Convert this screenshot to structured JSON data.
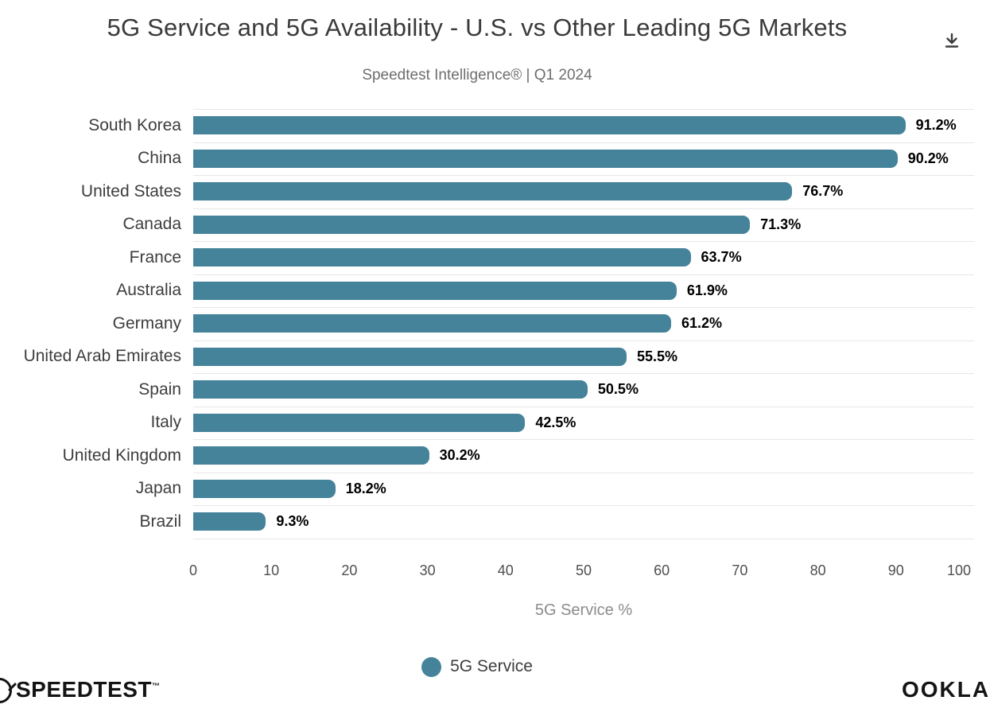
{
  "title": "5G Service and 5G Availability - U.S. vs Other Leading 5G Markets",
  "subtitle": "Speedtest Intelligence® | Q1 2024",
  "chart_data": {
    "type": "bar",
    "orientation": "horizontal",
    "title": "5G Service and 5G Availability - U.S. vs Other Leading 5G Markets",
    "subtitle": "Speedtest Intelligence® | Q1 2024",
    "categories": [
      "South Korea",
      "China",
      "United States",
      "Canada",
      "France",
      "Australia",
      "Germany",
      "United Arab Emirates",
      "Spain",
      "Italy",
      "United Kingdom",
      "Japan",
      "Brazil"
    ],
    "series": [
      {
        "name": "5G Service",
        "values": [
          91.2,
          90.2,
          76.7,
          71.3,
          63.7,
          61.9,
          61.2,
          55.5,
          50.5,
          42.5,
          30.2,
          18.2,
          9.3
        ],
        "value_labels": [
          "91.2%",
          "90.2%",
          "76.7%",
          "71.3%",
          "63.7%",
          "61.9%",
          "61.2%",
          "55.5%",
          "50.5%",
          "42.5%",
          "30.2%",
          "18.2%",
          "9.3%"
        ],
        "color": "#45839B"
      }
    ],
    "xlabel": "5G Service %",
    "ylabel": "",
    "xlim": [
      0,
      100
    ],
    "x_ticks": [
      0,
      10,
      20,
      30,
      40,
      50,
      60,
      70,
      80,
      90,
      100
    ],
    "grid": true,
    "gridline_color": "#e7e7e7",
    "legend_position": "bottom",
    "legend": [
      {
        "name": "5G Service",
        "color": "#45839B"
      }
    ]
  },
  "colors": {
    "bar": "#45839B",
    "grid": "#e7e7e7",
    "title": "#3a3a3a",
    "subtitle": "#6e6e6e",
    "value_label": "#000000",
    "logo": "#141414"
  },
  "icons": {
    "download": "download-icon",
    "gauge": "speedtest-gauge-icon",
    "legend_marker": "legend-series-dot"
  },
  "footer": {
    "speedtest_text": "SPEEDTEST",
    "speedtest_tm": "™",
    "ookla_text": "OOKLA"
  }
}
